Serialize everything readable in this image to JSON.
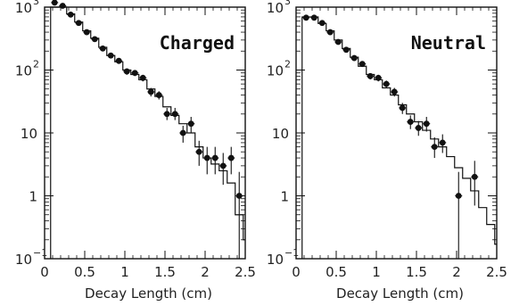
{
  "chart_data": [
    {
      "type": "scatter",
      "title": "Charged",
      "xlabel": "Decay Length (cm)",
      "ylabel": "",
      "xlim": [
        0,
        2.5
      ],
      "ylim": [
        0.1,
        1000
      ],
      "yscale": "log",
      "grid": false,
      "x_ticks": [
        {
          "value": 0,
          "label": "0"
        },
        {
          "value": 0.5,
          "label": "0.5"
        },
        {
          "value": 1,
          "label": "1"
        },
        {
          "value": 1.5,
          "label": "1.5"
        },
        {
          "value": 2,
          "label": "2"
        },
        {
          "value": 2.5,
          "label": "2.5"
        }
      ],
      "y_ticks": [
        {
          "value": 1000,
          "base": "10",
          "exp": "3"
        },
        {
          "value": 100,
          "base": "10",
          "exp": "2"
        },
        {
          "value": 10,
          "base": "10",
          "exp": ""
        },
        {
          "value": 1,
          "base": "1",
          "exp": ""
        },
        {
          "value": 0.1,
          "base": "10",
          "exp": "−1"
        }
      ],
      "points": [
        {
          "x": 0.125,
          "y": 1180,
          "lo": 1130,
          "hi": 1230
        },
        {
          "x": 0.225,
          "y": 1050,
          "lo": 1000,
          "hi": 1100
        },
        {
          "x": 0.325,
          "y": 760,
          "lo": 720,
          "hi": 800
        },
        {
          "x": 0.425,
          "y": 560,
          "lo": 525,
          "hi": 595
        },
        {
          "x": 0.525,
          "y": 400,
          "lo": 370,
          "hi": 430
        },
        {
          "x": 0.625,
          "y": 310,
          "lo": 285,
          "hi": 335
        },
        {
          "x": 0.725,
          "y": 220,
          "lo": 200,
          "hi": 240
        },
        {
          "x": 0.825,
          "y": 170,
          "lo": 153,
          "hi": 187
        },
        {
          "x": 0.925,
          "y": 140,
          "lo": 125,
          "hi": 155
        },
        {
          "x": 1.025,
          "y": 95,
          "lo": 84,
          "hi": 106
        },
        {
          "x": 1.125,
          "y": 90,
          "lo": 80,
          "hi": 100
        },
        {
          "x": 1.225,
          "y": 75,
          "lo": 66,
          "hi": 84
        },
        {
          "x": 1.325,
          "y": 45,
          "lo": 38,
          "hi": 52
        },
        {
          "x": 1.425,
          "y": 40,
          "lo": 34,
          "hi": 46
        },
        {
          "x": 1.525,
          "y": 20,
          "lo": 16,
          "hi": 25
        },
        {
          "x": 1.625,
          "y": 20,
          "lo": 16,
          "hi": 25
        },
        {
          "x": 1.725,
          "y": 10,
          "lo": 7,
          "hi": 13
        },
        {
          "x": 1.825,
          "y": 14,
          "lo": 10,
          "hi": 18
        },
        {
          "x": 1.925,
          "y": 5,
          "lo": 3,
          "hi": 7.5
        },
        {
          "x": 2.025,
          "y": 4,
          "lo": 2.2,
          "hi": 6
        },
        {
          "x": 2.125,
          "y": 4,
          "lo": 2.2,
          "hi": 6
        },
        {
          "x": 2.225,
          "y": 3,
          "lo": 1.5,
          "hi": 4.8
        },
        {
          "x": 2.325,
          "y": 4,
          "lo": 2.2,
          "hi": 6
        },
        {
          "x": 2.425,
          "y": 1,
          "lo": 0.1,
          "hi": 2.4
        },
        {
          "x": 2.525,
          "y": 1,
          "lo": 0.1,
          "hi": 2.4
        }
      ],
      "histogram": {
        "bin_width": 0.1,
        "start": 0.075,
        "values": [
          1150,
          1000,
          780,
          580,
          420,
          320,
          230,
          170,
          135,
          100,
          85,
          70,
          50,
          38,
          26,
          19,
          14,
          10,
          6,
          4,
          3.2,
          2.5,
          1.6,
          0.5,
          0.2
        ]
      }
    },
    {
      "type": "scatter",
      "title": "Neutral",
      "xlabel": "Decay Length (cm)",
      "ylabel": "",
      "xlim": [
        0,
        2.5
      ],
      "ylim": [
        0.1,
        1000
      ],
      "yscale": "log",
      "grid": false,
      "x_ticks": [
        {
          "value": 0,
          "label": "0"
        },
        {
          "value": 0.5,
          "label": "0.5"
        },
        {
          "value": 1,
          "label": "1"
        },
        {
          "value": 1.5,
          "label": "1.5"
        },
        {
          "value": 2,
          "label": "2"
        },
        {
          "value": 2.5,
          "label": "2.5"
        }
      ],
      "y_ticks": [
        {
          "value": 1000,
          "base": "10",
          "exp": "3"
        },
        {
          "value": 100,
          "base": "10",
          "exp": "2"
        },
        {
          "value": 10,
          "base": "10",
          "exp": ""
        },
        {
          "value": 1,
          "base": "1",
          "exp": ""
        },
        {
          "value": 0.1,
          "base": "10",
          "exp": "−1"
        }
      ],
      "points": [
        {
          "x": 0.125,
          "y": 680,
          "lo": 650,
          "hi": 710
        },
        {
          "x": 0.225,
          "y": 680,
          "lo": 650,
          "hi": 710
        },
        {
          "x": 0.325,
          "y": 560,
          "lo": 530,
          "hi": 590
        },
        {
          "x": 0.425,
          "y": 400,
          "lo": 375,
          "hi": 425
        },
        {
          "x": 0.525,
          "y": 280,
          "lo": 260,
          "hi": 300
        },
        {
          "x": 0.625,
          "y": 210,
          "lo": 193,
          "hi": 227
        },
        {
          "x": 0.725,
          "y": 155,
          "lo": 141,
          "hi": 169
        },
        {
          "x": 0.825,
          "y": 125,
          "lo": 112,
          "hi": 138
        },
        {
          "x": 0.925,
          "y": 80,
          "lo": 71,
          "hi": 89
        },
        {
          "x": 1.025,
          "y": 75,
          "lo": 66,
          "hi": 84
        },
        {
          "x": 1.125,
          "y": 60,
          "lo": 52,
          "hi": 68
        },
        {
          "x": 1.225,
          "y": 45,
          "lo": 38,
          "hi": 52
        },
        {
          "x": 1.325,
          "y": 25,
          "lo": 20,
          "hi": 30
        },
        {
          "x": 1.425,
          "y": 15,
          "lo": 11.5,
          "hi": 19
        },
        {
          "x": 1.525,
          "y": 12,
          "lo": 9,
          "hi": 15.5
        },
        {
          "x": 1.625,
          "y": 14,
          "lo": 10.5,
          "hi": 18
        },
        {
          "x": 1.725,
          "y": 6,
          "lo": 4,
          "hi": 8.5
        },
        {
          "x": 1.825,
          "y": 7,
          "lo": 4.8,
          "hi": 9.5
        },
        {
          "x": 2.025,
          "y": 1,
          "lo": 0.1,
          "hi": 2.4
        },
        {
          "x": 2.225,
          "y": 2,
          "lo": 0.7,
          "hi": 3.6
        }
      ],
      "histogram": {
        "bin_width": 0.1,
        "start": 0.075,
        "values": [
          700,
          700,
          550,
          420,
          300,
          220,
          160,
          115,
          85,
          70,
          52,
          40,
          28,
          20,
          15,
          11,
          8,
          6,
          4.2,
          2.8,
          1.9,
          1.2,
          0.65,
          0.35,
          0.17
        ]
      }
    }
  ]
}
